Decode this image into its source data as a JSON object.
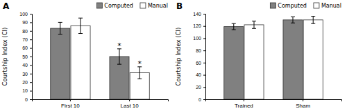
{
  "chart_data": [
    {
      "type": "bar",
      "title": "A",
      "y_label": "Courtship Index (CI)",
      "categories": [
        "First 10",
        "Last 10"
      ],
      "series": [
        {
          "name": "Computed",
          "color": "#808080",
          "values": [
            83,
            50
          ],
          "errors": [
            7,
            9
          ],
          "significance": [
            null,
            "*"
          ]
        },
        {
          "name": "Manual",
          "color": "#ffffff",
          "values": [
            86,
            31
          ],
          "errors": [
            9,
            7
          ],
          "significance": [
            null,
            "*"
          ]
        }
      ],
      "ylim": [
        0,
        100
      ],
      "yticks": [
        0,
        10,
        20,
        30,
        40,
        50,
        60,
        70,
        80,
        90,
        100
      ],
      "grid": false,
      "legend": "upper right"
    },
    {
      "type": "bar",
      "title": "B",
      "y_label": "Courtship Index (CI)",
      "categories": [
        "Trained",
        "Sham"
      ],
      "series": [
        {
          "name": "Computed",
          "color": "#808080",
          "values": [
            119,
            130
          ],
          "errors": [
            5,
            5
          ],
          "significance": [
            null,
            null
          ]
        },
        {
          "name": "Manual",
          "color": "#ffffff",
          "values": [
            122,
            130
          ],
          "errors": [
            6,
            6
          ],
          "significance": [
            null,
            null
          ]
        }
      ],
      "ylim": [
        0,
        140
      ],
      "yticks": [
        0,
        20,
        40,
        60,
        80,
        100,
        120,
        140
      ],
      "grid": false,
      "legend": "upper right"
    }
  ]
}
